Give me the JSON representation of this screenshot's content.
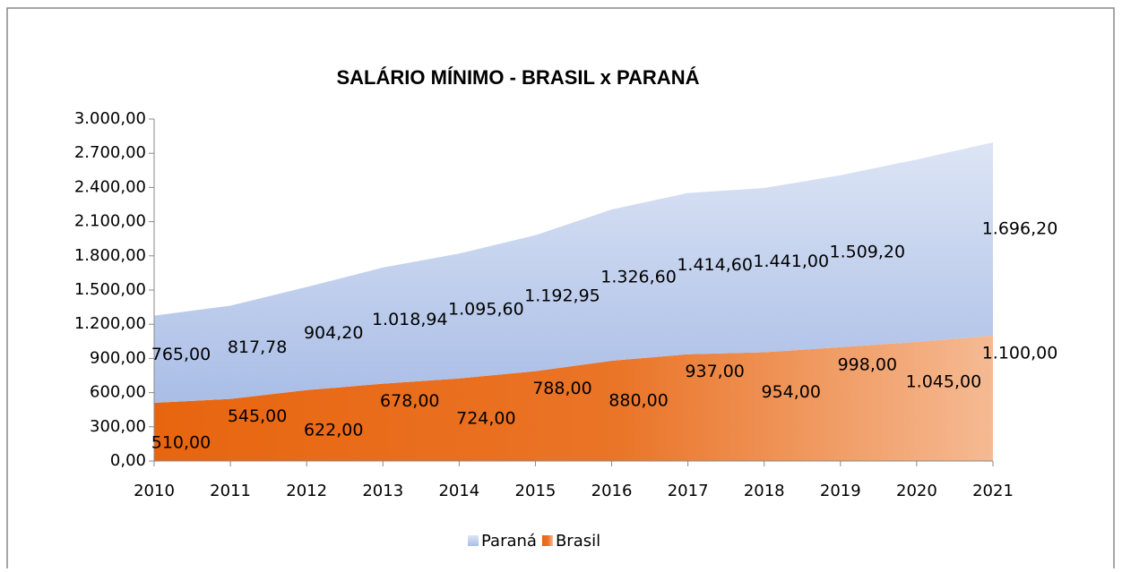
{
  "chart_data": {
    "type": "stacked-area",
    "title": "SALÁRIO MÍNIMO  - BRASIL x PARANÁ",
    "categories": [
      "2010",
      "2011",
      "2012",
      "2013",
      "2014",
      "2015",
      "2016",
      "2017",
      "2018",
      "2019",
      "2020",
      "2021"
    ],
    "series": [
      {
        "name": "Brasil",
        "color": "#e8650f",
        "values": [
          510,
          545,
          622,
          678,
          724,
          788,
          880,
          937,
          954,
          998,
          1045,
          1100
        ],
        "value_labels": [
          "510,00",
          "545,00",
          "622,00",
          "678,00",
          "724,00",
          "788,00",
          "880,00",
          "937,00",
          "954,00",
          "998,00",
          "1.045,00",
          "1.100,00"
        ]
      },
      {
        "name": "Paraná",
        "color": "#a9bde6",
        "values": [
          765,
          817.78,
          904.2,
          1018.94,
          1095.6,
          1192.95,
          1326.6,
          1414.6,
          1441,
          1509.2,
          1600,
          1696.2
        ],
        "value_labels": [
          "765,00",
          "817,78",
          "904,20",
          "1.018,94",
          "1.095,60",
          "1.192,95",
          "1.326,60",
          "1.414,60",
          "1.441,00",
          "1.509,20",
          null,
          "1.696,20"
        ]
      }
    ],
    "ylim": [
      0,
      3000
    ],
    "yticks": [
      {
        "value": 0,
        "label": "0,00"
      },
      {
        "value": 300,
        "label": "300,00"
      },
      {
        "value": 600,
        "label": "600,00"
      },
      {
        "value": 900,
        "label": "900,00"
      },
      {
        "value": 1200,
        "label": "1.200,00"
      },
      {
        "value": 1500,
        "label": "1.500,00"
      },
      {
        "value": 1800,
        "label": "1.800,00"
      },
      {
        "value": 2100,
        "label": "2.100,00"
      },
      {
        "value": 2400,
        "label": "2.400,00"
      },
      {
        "value": 2700,
        "label": "2.700,00"
      },
      {
        "value": 3000,
        "label": "3.000,00"
      }
    ],
    "legend": "bottom",
    "legend_order": [
      "Paraná",
      "Brasil"
    ]
  }
}
